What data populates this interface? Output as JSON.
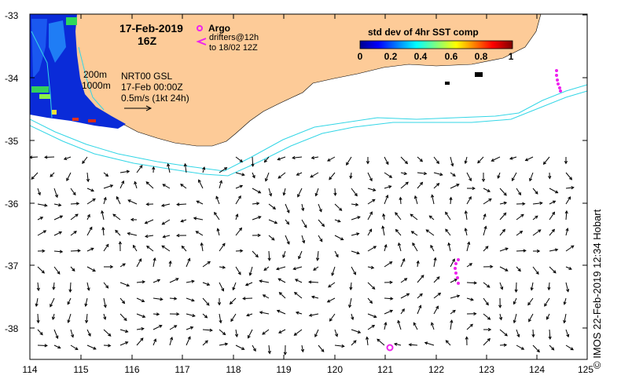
{
  "map": {
    "date": "17-Feb-2019",
    "hour": "16Z",
    "argo_label": "Argo",
    "drifters_line1": "drifters@12h",
    "drifters_line2": "to 18/02 12Z",
    "contour_200": "200m",
    "contour_1000": "1000m",
    "product_line1": "NRT00 GSL",
    "product_line2": "17-Feb 00:00Z",
    "scale_label": "0.5m/s (1kt 24h)",
    "colorbar_title": "std dev of 4hr SST comp",
    "colorbar_ticks": [
      "0",
      "0.2",
      "0.4",
      "0.6",
      "0.8",
      "1"
    ],
    "credit": "© IMOS 22-Feb-2019 12:34 Hobart",
    "lon_ticks": [
      "114",
      "115",
      "116",
      "117",
      "118",
      "119",
      "120",
      "121",
      "122",
      "123",
      "124",
      "125"
    ],
    "lat_ticks": [
      "-33",
      "-34",
      "-35",
      "-36",
      "-37",
      "-38"
    ],
    "colors": {
      "land": "#fdcb98",
      "contour": "#33d6e6",
      "argo": "#ee22ee",
      "arrow": "#000000"
    }
  }
}
